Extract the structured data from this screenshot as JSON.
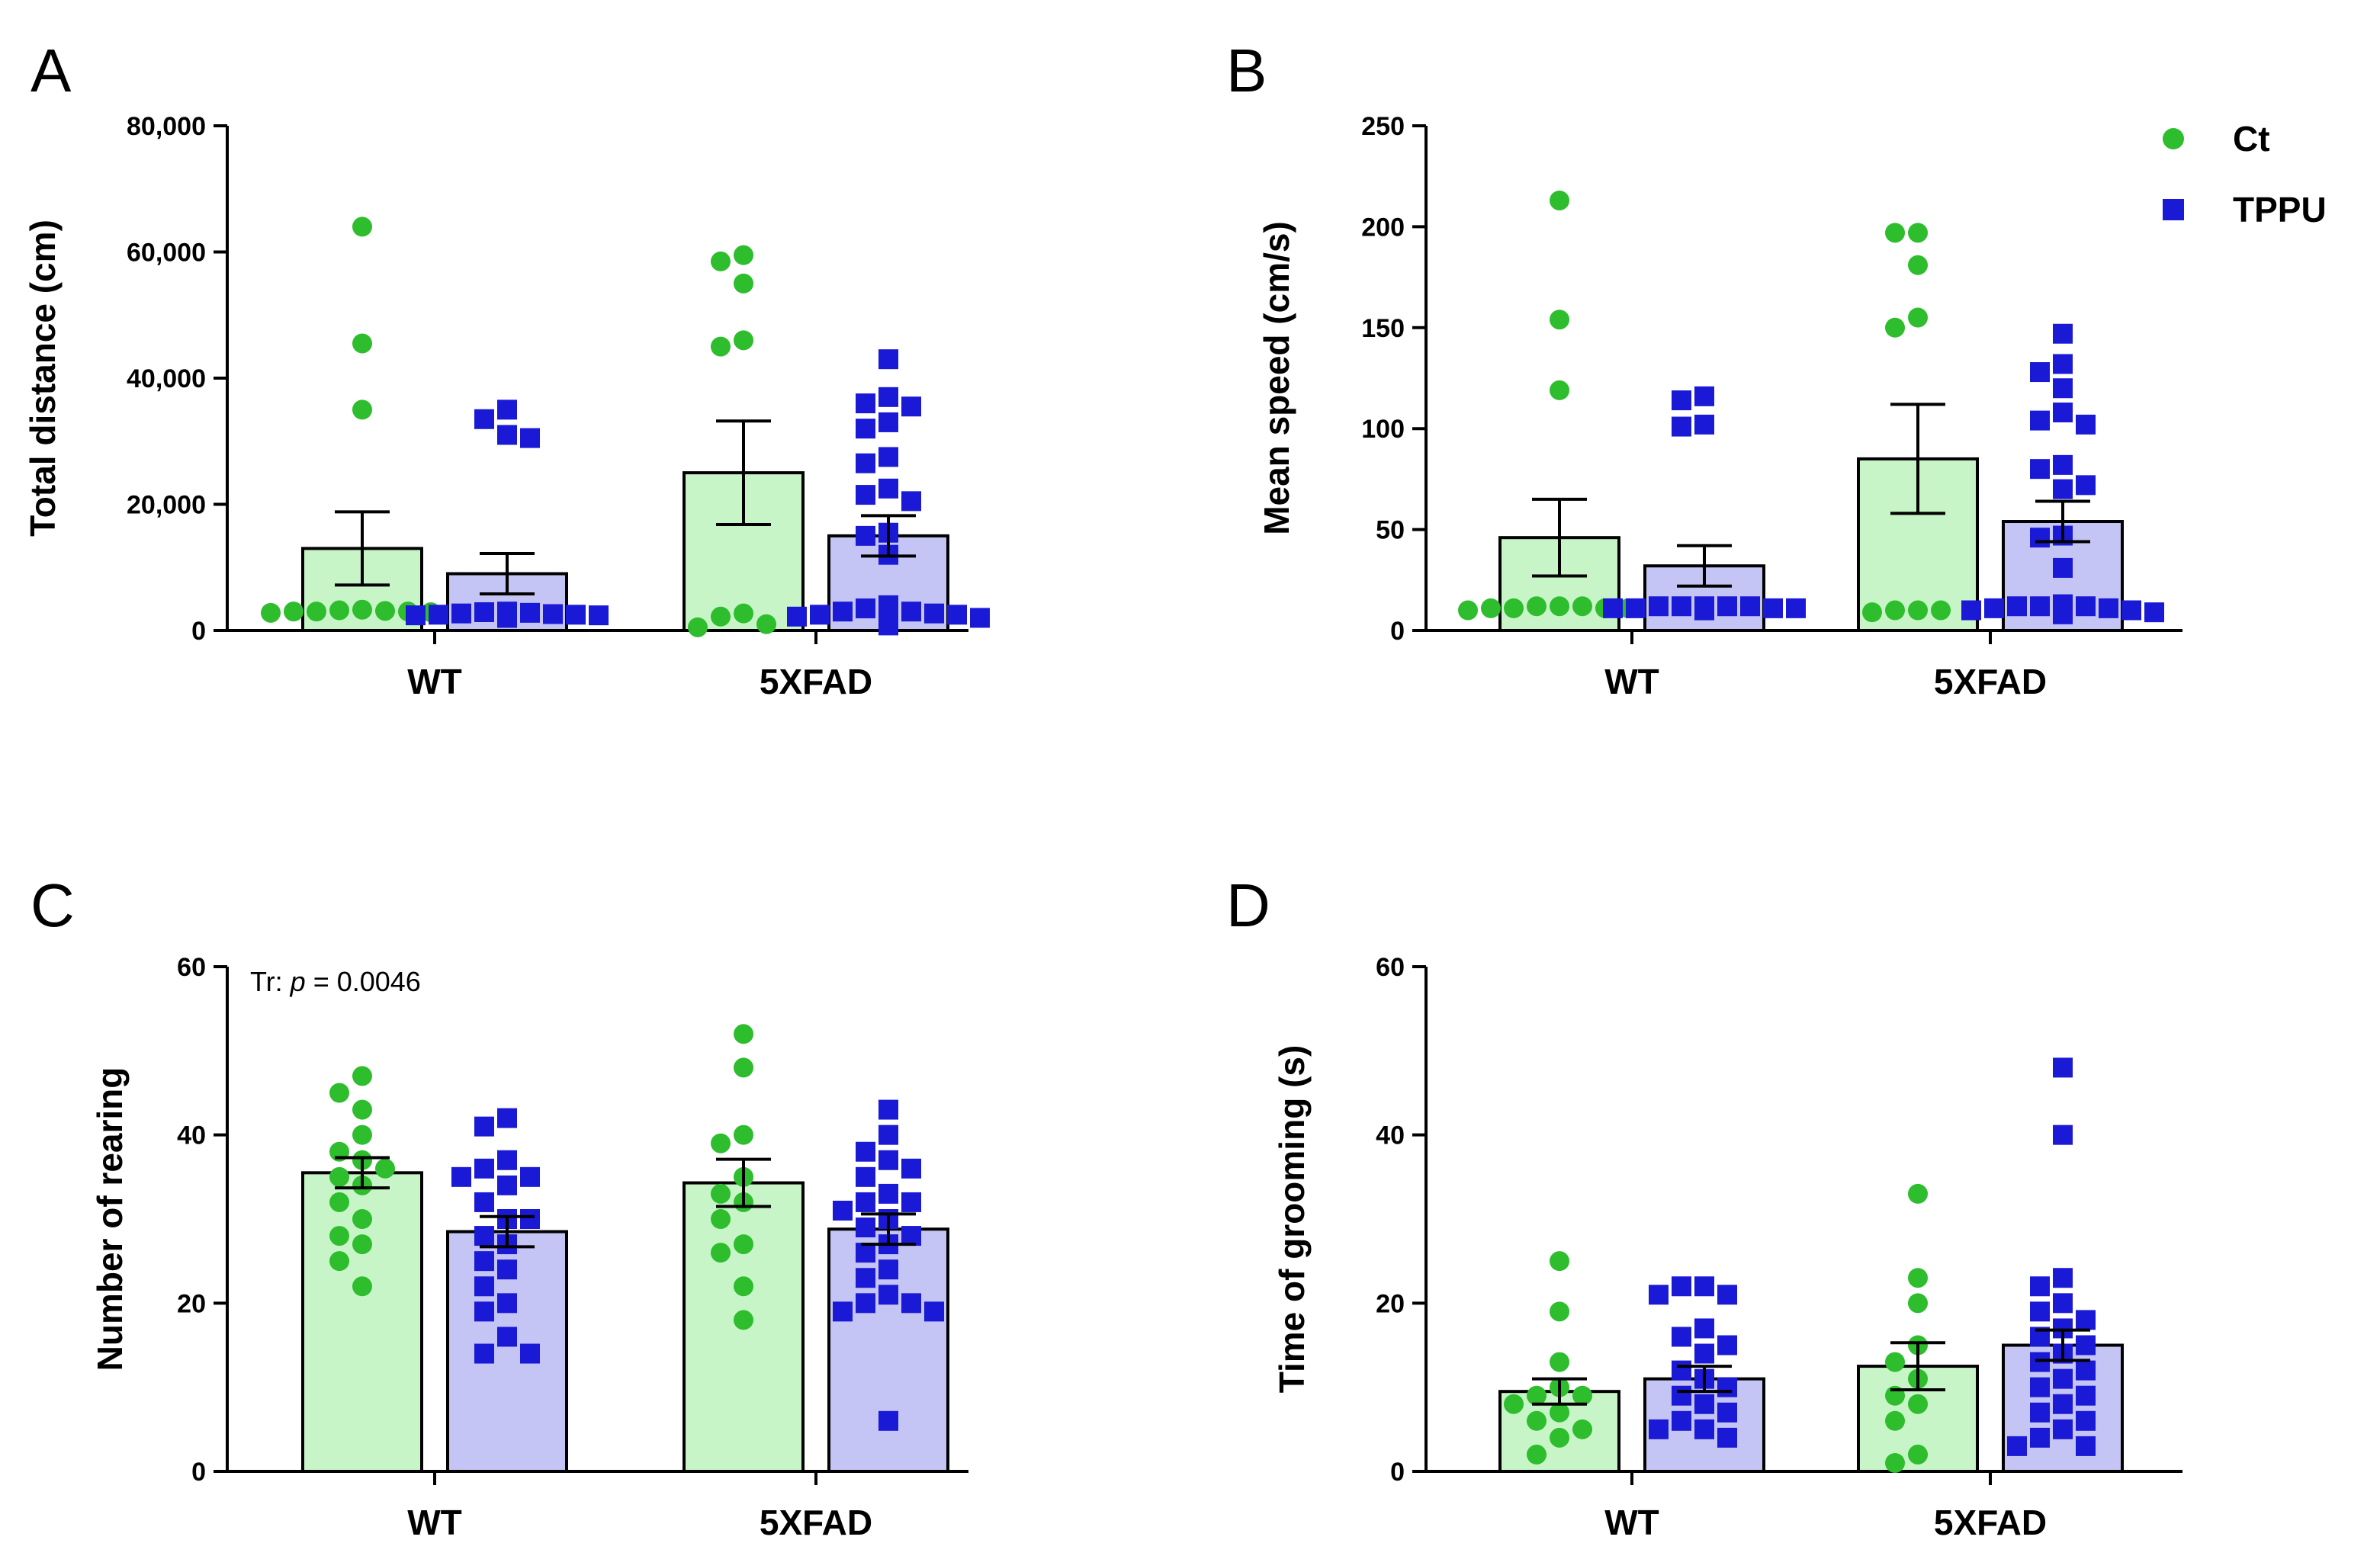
{
  "legend": {
    "items": [
      {
        "label": "Ct",
        "color": "#2dbd2d",
        "fill": "#c8f5c8",
        "marker": "circle"
      },
      {
        "label": "TPPU",
        "color": "#1a1ad6",
        "fill": "#c4c4f5",
        "marker": "square"
      }
    ]
  },
  "chart_data": [
    {
      "panel": "A",
      "type": "bar",
      "title": "",
      "xlabel": "",
      "ylabel": "Total distance (cm)",
      "ylim": [
        0,
        80000
      ],
      "yticks": [
        0,
        20000,
        40000,
        60000,
        80000
      ],
      "ytick_labels": [
        "0",
        "20,000",
        "40,000",
        "60,000",
        "80,000"
      ],
      "categories": [
        "WT",
        "5XFAD"
      ],
      "series": [
        {
          "name": "Ct",
          "values": [
            13000,
            25000
          ],
          "sem": [
            5800,
            8200
          ],
          "points": [
            [
              64000,
              45500,
              35000,
              3200,
              3000,
              2900,
              3100,
              3000,
              2800,
              3300,
              2700,
              3000
            ],
            [
              59500,
              58500,
              55000,
              46000,
              45000,
              2700,
              2200,
              1000,
              500
            ]
          ]
        },
        {
          "name": "TPPU",
          "values": [
            9000,
            15000
          ],
          "sem": [
            3200,
            3200
          ],
          "points": [
            [
              35000,
              33500,
              31000,
              30500,
              3000,
              2700,
              2500,
              2200,
              2000,
              2400,
              2600,
              2300,
              2100,
              2800,
              2500,
              2200,
              2900,
              2400,
              2000
            ],
            [
              43000,
              37000,
              36000,
              35500,
              33000,
              32000,
              27500,
              26500,
              22500,
              21500,
              20500,
              15500,
              15000,
              12000,
              4000,
              3500,
              3000,
              2500,
              2000,
              1500,
              3000,
              2500,
              1800,
              2200,
              2700,
              800
            ]
          ]
        }
      ]
    },
    {
      "panel": "B",
      "type": "bar",
      "title": "",
      "xlabel": "",
      "ylabel": "Mean speed (cm/s)",
      "ylim": [
        0,
        250
      ],
      "yticks": [
        0,
        50,
        100,
        150,
        200,
        250
      ],
      "ytick_labels": [
        "0",
        "50",
        "100",
        "150",
        "200",
        "250"
      ],
      "categories": [
        "WT",
        "5XFAD"
      ],
      "series": [
        {
          "name": "Ct",
          "values": [
            46,
            85
          ],
          "sem": [
            19,
            27
          ],
          "points": [
            [
              213,
              154,
              119,
              12,
              11,
              10,
              11,
              12,
              10,
              11,
              12,
              11
            ],
            [
              197,
              197,
              181,
              155,
              150,
              10,
              10,
              9,
              10
            ]
          ]
        },
        {
          "name": "TPPU",
          "values": [
            32,
            54
          ],
          "sem": [
            10,
            10
          ],
          "points": [
            [
              116,
              114,
              102,
              101,
              12,
              11,
              10,
              12,
              11,
              10,
              12,
              11,
              10,
              11,
              12,
              10,
              11,
              12,
              11
            ],
            [
              147,
              132,
              128,
              120,
              108,
              104,
              102,
              82,
              80,
              72,
              70,
              47,
              46,
              31,
              13,
              12,
              11,
              10,
              9,
              8,
              12,
              11,
              10,
              9,
              12
            ]
          ]
        }
      ]
    },
    {
      "panel": "C",
      "type": "bar",
      "title": "",
      "xlabel": "",
      "ylabel": "Number of rearing",
      "ylim": [
        0,
        60
      ],
      "yticks": [
        0,
        20,
        40,
        60
      ],
      "ytick_labels": [
        "0",
        "20",
        "40",
        "60"
      ],
      "annotation": {
        "prefix": "Tr: ",
        "italic": "p",
        "suffix": " = 0.0046"
      },
      "categories": [
        "WT",
        "5XFAD"
      ],
      "series": [
        {
          "name": "Ct",
          "values": [
            35.5,
            34.3
          ],
          "sem": [
            1.8,
            2.8
          ],
          "points": [
            [
              47,
              45,
              43,
              40,
              38,
              37,
              36,
              35,
              34,
              32,
              30,
              28,
              27,
              25,
              22
            ],
            [
              52,
              48,
              40,
              39,
              35,
              33,
              32,
              30,
              27,
              26,
              22,
              18
            ]
          ]
        },
        {
          "name": "TPPU",
          "values": [
            28.5,
            28.8
          ],
          "sem": [
            1.8,
            1.8
          ],
          "points": [
            [
              42,
              41,
              37,
              36,
              35,
              35,
              34,
              32,
              30,
              30,
              28,
              27,
              25,
              24,
              22,
              20,
              19,
              16,
              14,
              14
            ],
            [
              43,
              40,
              38,
              37,
              36,
              35,
              33,
              32,
              32,
              31,
              30,
              29,
              28,
              27,
              26,
              24,
              23,
              21,
              20,
              20,
              19,
              19,
              6
            ]
          ]
        }
      ]
    },
    {
      "panel": "D",
      "type": "bar",
      "title": "",
      "xlabel": "",
      "ylabel": "Time of grooming (s)",
      "ylim": [
        0,
        60
      ],
      "yticks": [
        0,
        20,
        40,
        60
      ],
      "ytick_labels": [
        "0",
        "20",
        "40",
        "60"
      ],
      "categories": [
        "WT",
        "5XFAD"
      ],
      "series": [
        {
          "name": "Ct",
          "values": [
            9.5,
            12.5
          ],
          "sem": [
            1.5,
            2.8
          ],
          "points": [
            [
              25,
              19,
              13,
              10,
              9,
              9,
              8,
              7,
              6,
              5,
              4,
              2
            ],
            [
              33,
              23,
              20,
              15,
              13,
              11,
              9,
              8,
              6,
              2,
              1
            ]
          ]
        },
        {
          "name": "TPPU",
          "values": [
            11,
            15
          ],
          "sem": [
            1.5,
            1.8
          ],
          "points": [
            [
              22,
              22,
              21,
              21,
              17,
              16,
              15,
              14,
              12,
              11,
              10,
              9,
              8,
              7,
              6,
              5,
              5,
              4
            ],
            [
              48,
              40,
              23,
              22,
              20,
              19,
              18,
              17,
              16,
              15,
              14,
              13,
              12,
              11,
              10,
              9,
              8,
              7,
              6,
              5,
              4,
              3,
              3
            ]
          ]
        }
      ]
    }
  ]
}
